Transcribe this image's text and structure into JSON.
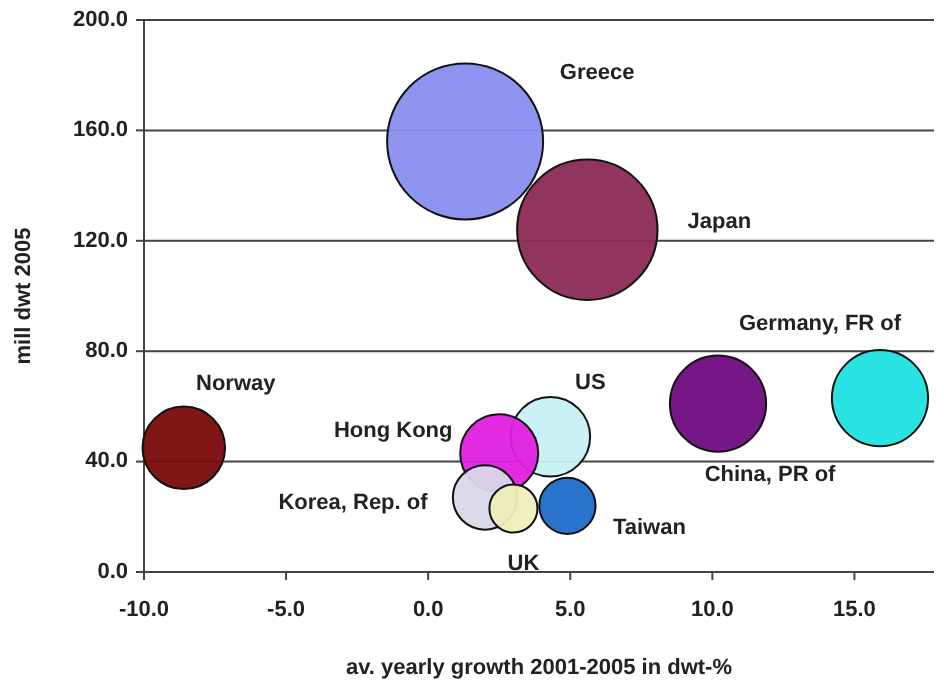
{
  "chart_data": {
    "type": "bubble",
    "xlabel": "av. yearly growth 2001-2005 in dwt-%",
    "ylabel": "mill dwt 2005",
    "xlim": [
      -10,
      17.8
    ],
    "ylim": [
      0,
      200
    ],
    "xticks": [
      {
        "value": -10,
        "label": "-10.0"
      },
      {
        "value": -5,
        "label": "-5.0"
      },
      {
        "value": 0,
        "label": "0.0"
      },
      {
        "value": 5,
        "label": "5.0"
      },
      {
        "value": 10,
        "label": "10.0"
      },
      {
        "value": 15,
        "label": "15.0"
      }
    ],
    "yticks": [
      {
        "value": 0,
        "label": "0.0"
      },
      {
        "value": 40,
        "label": "40.0"
      },
      {
        "value": 80,
        "label": "80.0"
      },
      {
        "value": 120,
        "label": "120.0"
      },
      {
        "value": 160,
        "label": "160.0"
      },
      {
        "value": 200,
        "label": "200.0"
      }
    ],
    "grid": "y",
    "series": [
      {
        "name": "Greece",
        "color": "#8a8ef0",
        "x": [
          1.3
        ],
        "values": [
          156
        ],
        "sizes": [
          1
        ]
      },
      {
        "name": "Japan",
        "color": "#8b2a55",
        "x": [
          5.6
        ],
        "values": [
          124
        ],
        "sizes": [
          0.81
        ]
      },
      {
        "name": "Germany, FR of",
        "color": "#20e0e0",
        "x": [
          15.9
        ],
        "values": [
          63
        ],
        "sizes": [
          0.38
        ]
      },
      {
        "name": "China, PR of",
        "color": "#700a80",
        "x": [
          10.2
        ],
        "values": [
          61
        ],
        "sizes": [
          0.38
        ]
      },
      {
        "name": "Norway",
        "color": "#7a0a0a",
        "x": [
          -8.6
        ],
        "values": [
          45
        ],
        "sizes": [
          0.28
        ]
      },
      {
        "name": "US",
        "color": "#c8f0f4",
        "x": [
          4.3
        ],
        "values": [
          49
        ],
        "sizes": [
          0.26
        ]
      },
      {
        "name": "Hong Kong",
        "color": "#e020e0",
        "x": [
          2.5
        ],
        "values": [
          43
        ],
        "sizes": [
          0.25
        ]
      },
      {
        "name": "Korea, Rep. of",
        "color": "#d8d8e8",
        "x": [
          2.0
        ],
        "values": [
          27
        ],
        "sizes": [
          0.17
        ]
      },
      {
        "name": "Taiwan",
        "color": "#1e6cc8",
        "x": [
          4.9
        ],
        "values": [
          24
        ],
        "sizes": [
          0.13
        ]
      },
      {
        "name": "UK",
        "color": "#f0eebb",
        "x": [
          3.0
        ],
        "values": [
          23
        ],
        "sizes": [
          0.095
        ]
      }
    ]
  }
}
